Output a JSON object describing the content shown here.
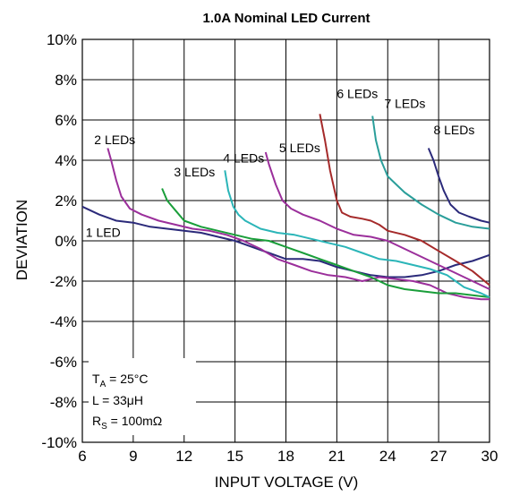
{
  "chart_data": {
    "type": "line",
    "title": "1.0A Nominal LED Current",
    "xlabel": "INPUT VOLTAGE (V)",
    "ylabel": "DEVIATION",
    "xlim": [
      6,
      30
    ],
    "ylim": [
      -10,
      10
    ],
    "xticks": [
      6,
      9,
      12,
      15,
      18,
      21,
      24,
      27,
      30
    ],
    "xtick_labels": [
      "6",
      "9",
      "12",
      "15",
      "18",
      "21",
      "24",
      "27",
      "30"
    ],
    "yticks": [
      -10,
      -8,
      -6,
      -4,
      -2,
      0,
      2,
      4,
      6,
      8,
      10
    ],
    "ytick_labels": [
      "-10%",
      "-8%",
      "-6%",
      "-4%",
      "-2%",
      "0%",
      "2%",
      "4%",
      "6%",
      "8%",
      "10%"
    ],
    "grid": true,
    "legend": "none",
    "annotation": {
      "t_prefix": "T",
      "t_sub": "A",
      "t_rest": " = 25°C",
      "l_line": "L = 33μH",
      "r_prefix": "R",
      "r_sub": "S",
      "r_rest": " = 100mΩ"
    },
    "series": [
      {
        "name": "1 LED",
        "color": "#2b2a7a",
        "label_pos": [
          6.2,
          0.2
        ],
        "x": [
          6,
          7,
          8,
          9,
          10,
          11,
          12,
          13,
          14,
          15,
          16,
          17,
          18,
          19,
          20,
          21,
          22,
          23,
          24,
          25,
          26,
          27,
          28,
          29,
          30
        ],
        "y": [
          1.7,
          1.3,
          1.0,
          0.9,
          0.7,
          0.6,
          0.5,
          0.4,
          0.2,
          0.0,
          -0.3,
          -0.6,
          -0.9,
          -0.9,
          -1.0,
          -1.3,
          -1.5,
          -1.7,
          -1.8,
          -1.8,
          -1.7,
          -1.5,
          -1.2,
          -1.0,
          -0.7
        ]
      },
      {
        "name": "2 LEDs",
        "color": "#9b2f9b",
        "label_pos": [
          6.7,
          4.8
        ],
        "x": [
          7.5,
          7.7,
          8.0,
          8.3,
          8.8,
          9.5,
          10.5,
          11.5,
          12.5,
          13.5,
          14.5,
          15.5,
          16.5,
          17.5,
          18.5,
          19.5,
          20.5,
          21.5,
          22.5,
          23.5,
          24.5,
          25.5,
          26.5,
          27.5,
          28.5,
          29.5,
          30
        ],
        "y": [
          4.6,
          4.0,
          3.0,
          2.2,
          1.6,
          1.3,
          1.0,
          0.8,
          0.6,
          0.5,
          0.3,
          0.0,
          -0.4,
          -0.9,
          -1.2,
          -1.5,
          -1.7,
          -1.8,
          -2.0,
          -1.8,
          -1.9,
          -2.0,
          -2.2,
          -2.6,
          -2.8,
          -2.9,
          -2.9
        ]
      },
      {
        "name": "3 LEDs",
        "color": "#1a9e3a",
        "label_pos": [
          11.4,
          3.2
        ],
        "x": [
          10.7,
          11.0,
          11.5,
          12.0,
          13.0,
          14.0,
          15.0,
          16.0,
          17.0,
          18.0,
          19.0,
          20.0,
          21.0,
          22.0,
          23.0,
          24.0,
          25.0,
          26.0,
          27.0,
          28.0,
          29.0,
          30.0
        ],
        "y": [
          2.6,
          2.0,
          1.5,
          1.0,
          0.7,
          0.5,
          0.3,
          0.1,
          0.0,
          -0.3,
          -0.6,
          -0.9,
          -1.2,
          -1.5,
          -1.8,
          -2.2,
          -2.4,
          -2.5,
          -2.6,
          -2.6,
          -2.7,
          -2.8
        ]
      },
      {
        "name": "4 LEDs",
        "color": "#2bb5b8",
        "label_pos": [
          14.3,
          3.9
        ],
        "x": [
          14.4,
          14.6,
          14.9,
          15.2,
          15.6,
          16.5,
          17.5,
          18.5,
          19.5,
          20.5,
          21.5,
          22.5,
          23.5,
          24.5,
          25.5,
          26.5,
          27.5,
          28.5,
          29.5,
          30.0
        ],
        "y": [
          3.5,
          2.5,
          1.7,
          1.3,
          1.0,
          0.6,
          0.4,
          0.3,
          0.1,
          -0.1,
          -0.3,
          -0.6,
          -0.9,
          -1.0,
          -1.2,
          -1.4,
          -1.7,
          -2.3,
          -2.6,
          -2.8
        ]
      },
      {
        "name": "5 LEDs",
        "color": "#9b2f9b",
        "label_pos": [
          17.6,
          4.4
        ],
        "x": [
          16.8,
          17.0,
          17.4,
          17.8,
          18.3,
          19.0,
          20.0,
          21.0,
          22.0,
          23.0,
          24.0,
          25.0,
          26.0,
          27.0,
          28.0,
          29.0,
          30.0
        ],
        "y": [
          4.4,
          3.8,
          2.8,
          2.0,
          1.6,
          1.3,
          1.0,
          0.6,
          0.3,
          0.2,
          0.0,
          -0.4,
          -0.8,
          -1.2,
          -1.6,
          -2.0,
          -2.4
        ]
      },
      {
        "name": "6 LEDs",
        "color": "#a52a2a",
        "label_pos": [
          21.0,
          7.1
        ],
        "x": [
          20.0,
          20.3,
          20.6,
          21.0,
          21.3,
          21.8,
          22.5,
          23.0,
          23.5,
          24.0,
          25.0,
          26.0,
          27.0,
          28.0,
          29.0,
          30.0
        ],
        "y": [
          6.3,
          5.0,
          3.5,
          2.0,
          1.4,
          1.2,
          1.1,
          1.0,
          0.8,
          0.5,
          0.3,
          0.0,
          -0.5,
          -1.0,
          -1.5,
          -2.2
        ]
      },
      {
        "name": "7 LEDs",
        "color": "#2a9e9a",
        "label_pos": [
          23.8,
          6.6
        ],
        "x": [
          23.1,
          23.3,
          23.6,
          24.0,
          24.5,
          25.0,
          26.0,
          27.0,
          28.0,
          29.0,
          30.0
        ],
        "y": [
          6.2,
          5.0,
          4.0,
          3.2,
          2.8,
          2.4,
          1.8,
          1.3,
          0.9,
          0.7,
          0.6
        ]
      },
      {
        "name": "8 LEDs",
        "color": "#2b2a7a",
        "label_pos": [
          26.7,
          5.3
        ],
        "x": [
          26.4,
          26.7,
          27.0,
          27.3,
          27.7,
          28.2,
          28.8,
          29.5,
          30.0
        ],
        "y": [
          4.6,
          4.0,
          3.2,
          2.5,
          1.8,
          1.4,
          1.2,
          1.0,
          0.9
        ]
      }
    ]
  }
}
